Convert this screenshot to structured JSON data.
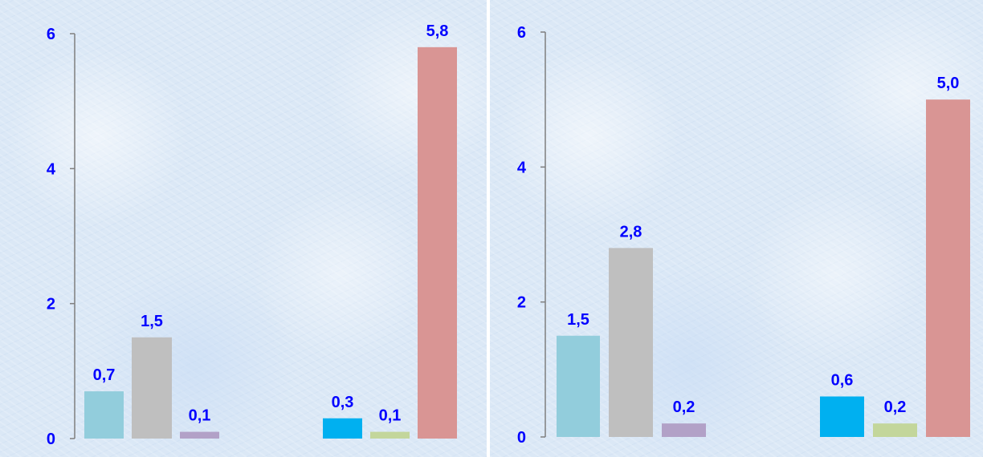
{
  "chart_data": [
    {
      "type": "bar",
      "ylim": [
        0,
        6
      ],
      "yticks": [
        "0",
        "2",
        "4",
        "6"
      ],
      "grid": false,
      "bars": [
        {
          "value": 0.7,
          "label": "0,7",
          "color": "#92cddc"
        },
        {
          "value": 1.5,
          "label": "1,5",
          "color": "#bfbfbf"
        },
        {
          "value": 0.1,
          "label": "0,1",
          "color": "#b2a1c7"
        },
        {
          "value": 0.3,
          "label": "0,3",
          "color": "#00b0f0"
        },
        {
          "value": 0.1,
          "label": "0,1",
          "color": "#c3d69b"
        },
        {
          "value": 5.8,
          "label": "5,8",
          "color": "#d99594"
        }
      ]
    },
    {
      "type": "bar",
      "ylim": [
        0,
        6
      ],
      "yticks": [
        "0",
        "2",
        "4",
        "6"
      ],
      "grid": false,
      "bars": [
        {
          "value": 1.5,
          "label": "1,5",
          "color": "#92cddc"
        },
        {
          "value": 2.8,
          "label": "2,8",
          "color": "#bfbfbf"
        },
        {
          "value": 0.2,
          "label": "0,2",
          "color": "#b2a1c7"
        },
        {
          "value": 0.6,
          "label": "0,6",
          "color": "#00b0f0"
        },
        {
          "value": 0.2,
          "label": "0,2",
          "color": "#c3d69b"
        },
        {
          "value": 5.0,
          "label": "5,0",
          "color": "#d99594"
        }
      ]
    }
  ]
}
